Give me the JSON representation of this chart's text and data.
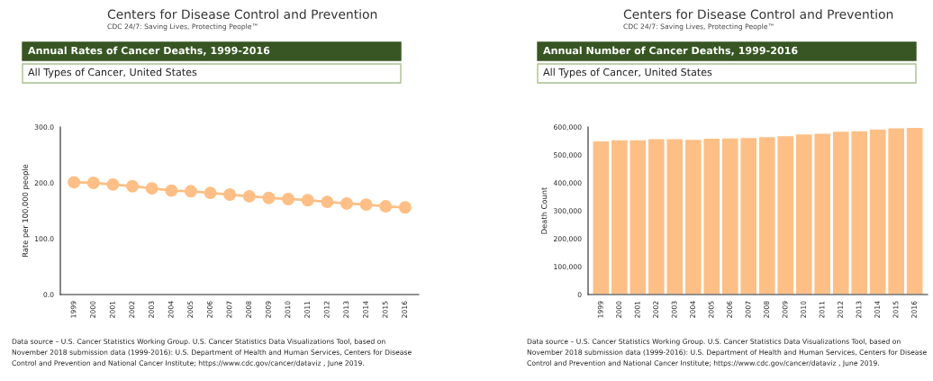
{
  "chart_data": [
    {
      "type": "line",
      "title": "Annual Rates of Cancer Deaths, 1999-2016",
      "subtitle": "All Types of Cancer, United States",
      "ylabel": "Rate per 100,000 people",
      "categories": [
        "1999",
        "2000",
        "2001",
        "2002",
        "2003",
        "2004",
        "2005",
        "2006",
        "2007",
        "2008",
        "2009",
        "2010",
        "2011",
        "2012",
        "2013",
        "2014",
        "2015",
        "2016"
      ],
      "series": [
        {
          "color": "#fdbf86",
          "values": [
            201,
            200,
            197,
            194,
            190,
            186,
            185,
            182,
            179,
            176,
            173,
            171,
            169,
            166,
            163,
            161,
            158,
            156
          ]
        }
      ],
      "ylim": [
        0,
        300
      ],
      "yticks": [
        {
          "value": 0,
          "label": "0.0"
        },
        {
          "value": 100,
          "label": "100.0"
        },
        {
          "value": 200,
          "label": "200.0"
        },
        {
          "value": 300,
          "label": "300.0"
        }
      ],
      "grid": false,
      "legend": false,
      "marker": "circle",
      "line_style": "solid",
      "annotations": [
        "Centers for Disease Control and Prevention",
        "CDC 24/7: Saving Lives, Protecting People™",
        "Data source – U.S. Cancer Statistics Working Group. U.S. Cancer Statistics Data Visualizations Tool, based on",
        "November 2018 submission data (1999-2016): U.S. Department of Health and Human Services, Centers for Disease",
        "Control and Prevention and National Cancer Institute; https://www.cdc.gov/cancer/dataviz , June 2019."
      ]
    },
    {
      "type": "bar",
      "title": "Annual Number of Cancer Deaths, 1999-2016",
      "subtitle": "All Types of Cancer, United States",
      "ylabel": "Death Count",
      "categories": [
        "1999",
        "2000",
        "2001",
        "2002",
        "2003",
        "2004",
        "2005",
        "2006",
        "2007",
        "2008",
        "2009",
        "2010",
        "2011",
        "2012",
        "2013",
        "2014",
        "2015",
        "2016"
      ],
      "series": [
        {
          "color": "#fdbf86",
          "values": [
            551000,
            555000,
            555000,
            559000,
            559000,
            556000,
            560000,
            561000,
            563000,
            566000,
            569000,
            576000,
            578000,
            585000,
            587000,
            593000,
            597000,
            599000
          ]
        }
      ],
      "ylim": [
        0,
        600000
      ],
      "yticks": [
        {
          "value": 0,
          "label": "0"
        },
        {
          "value": 100000,
          "label": "100,000"
        },
        {
          "value": 200000,
          "label": "200,000"
        },
        {
          "value": 300000,
          "label": "300,000"
        },
        {
          "value": 400000,
          "label": "400,000"
        },
        {
          "value": 500000,
          "label": "500,000"
        },
        {
          "value": 600000,
          "label": "600,000"
        }
      ],
      "grid": false,
      "legend": false,
      "annotations": [
        "Centers for Disease Control and Prevention",
        "CDC 24/7: Saving Lives, Protecting People™",
        "Data source – U.S. Cancer Statistics Working Group. U.S. Cancer Statistics Data Visualizations Tool, based on",
        "November 2018 submission data (1999-2016): U.S. Department of Health and Human Services, Centers for Disease",
        "Control and Prevention and National Cancer Institute; https://www.cdc.gov/cancer/dataviz , June 2019."
      ]
    }
  ]
}
